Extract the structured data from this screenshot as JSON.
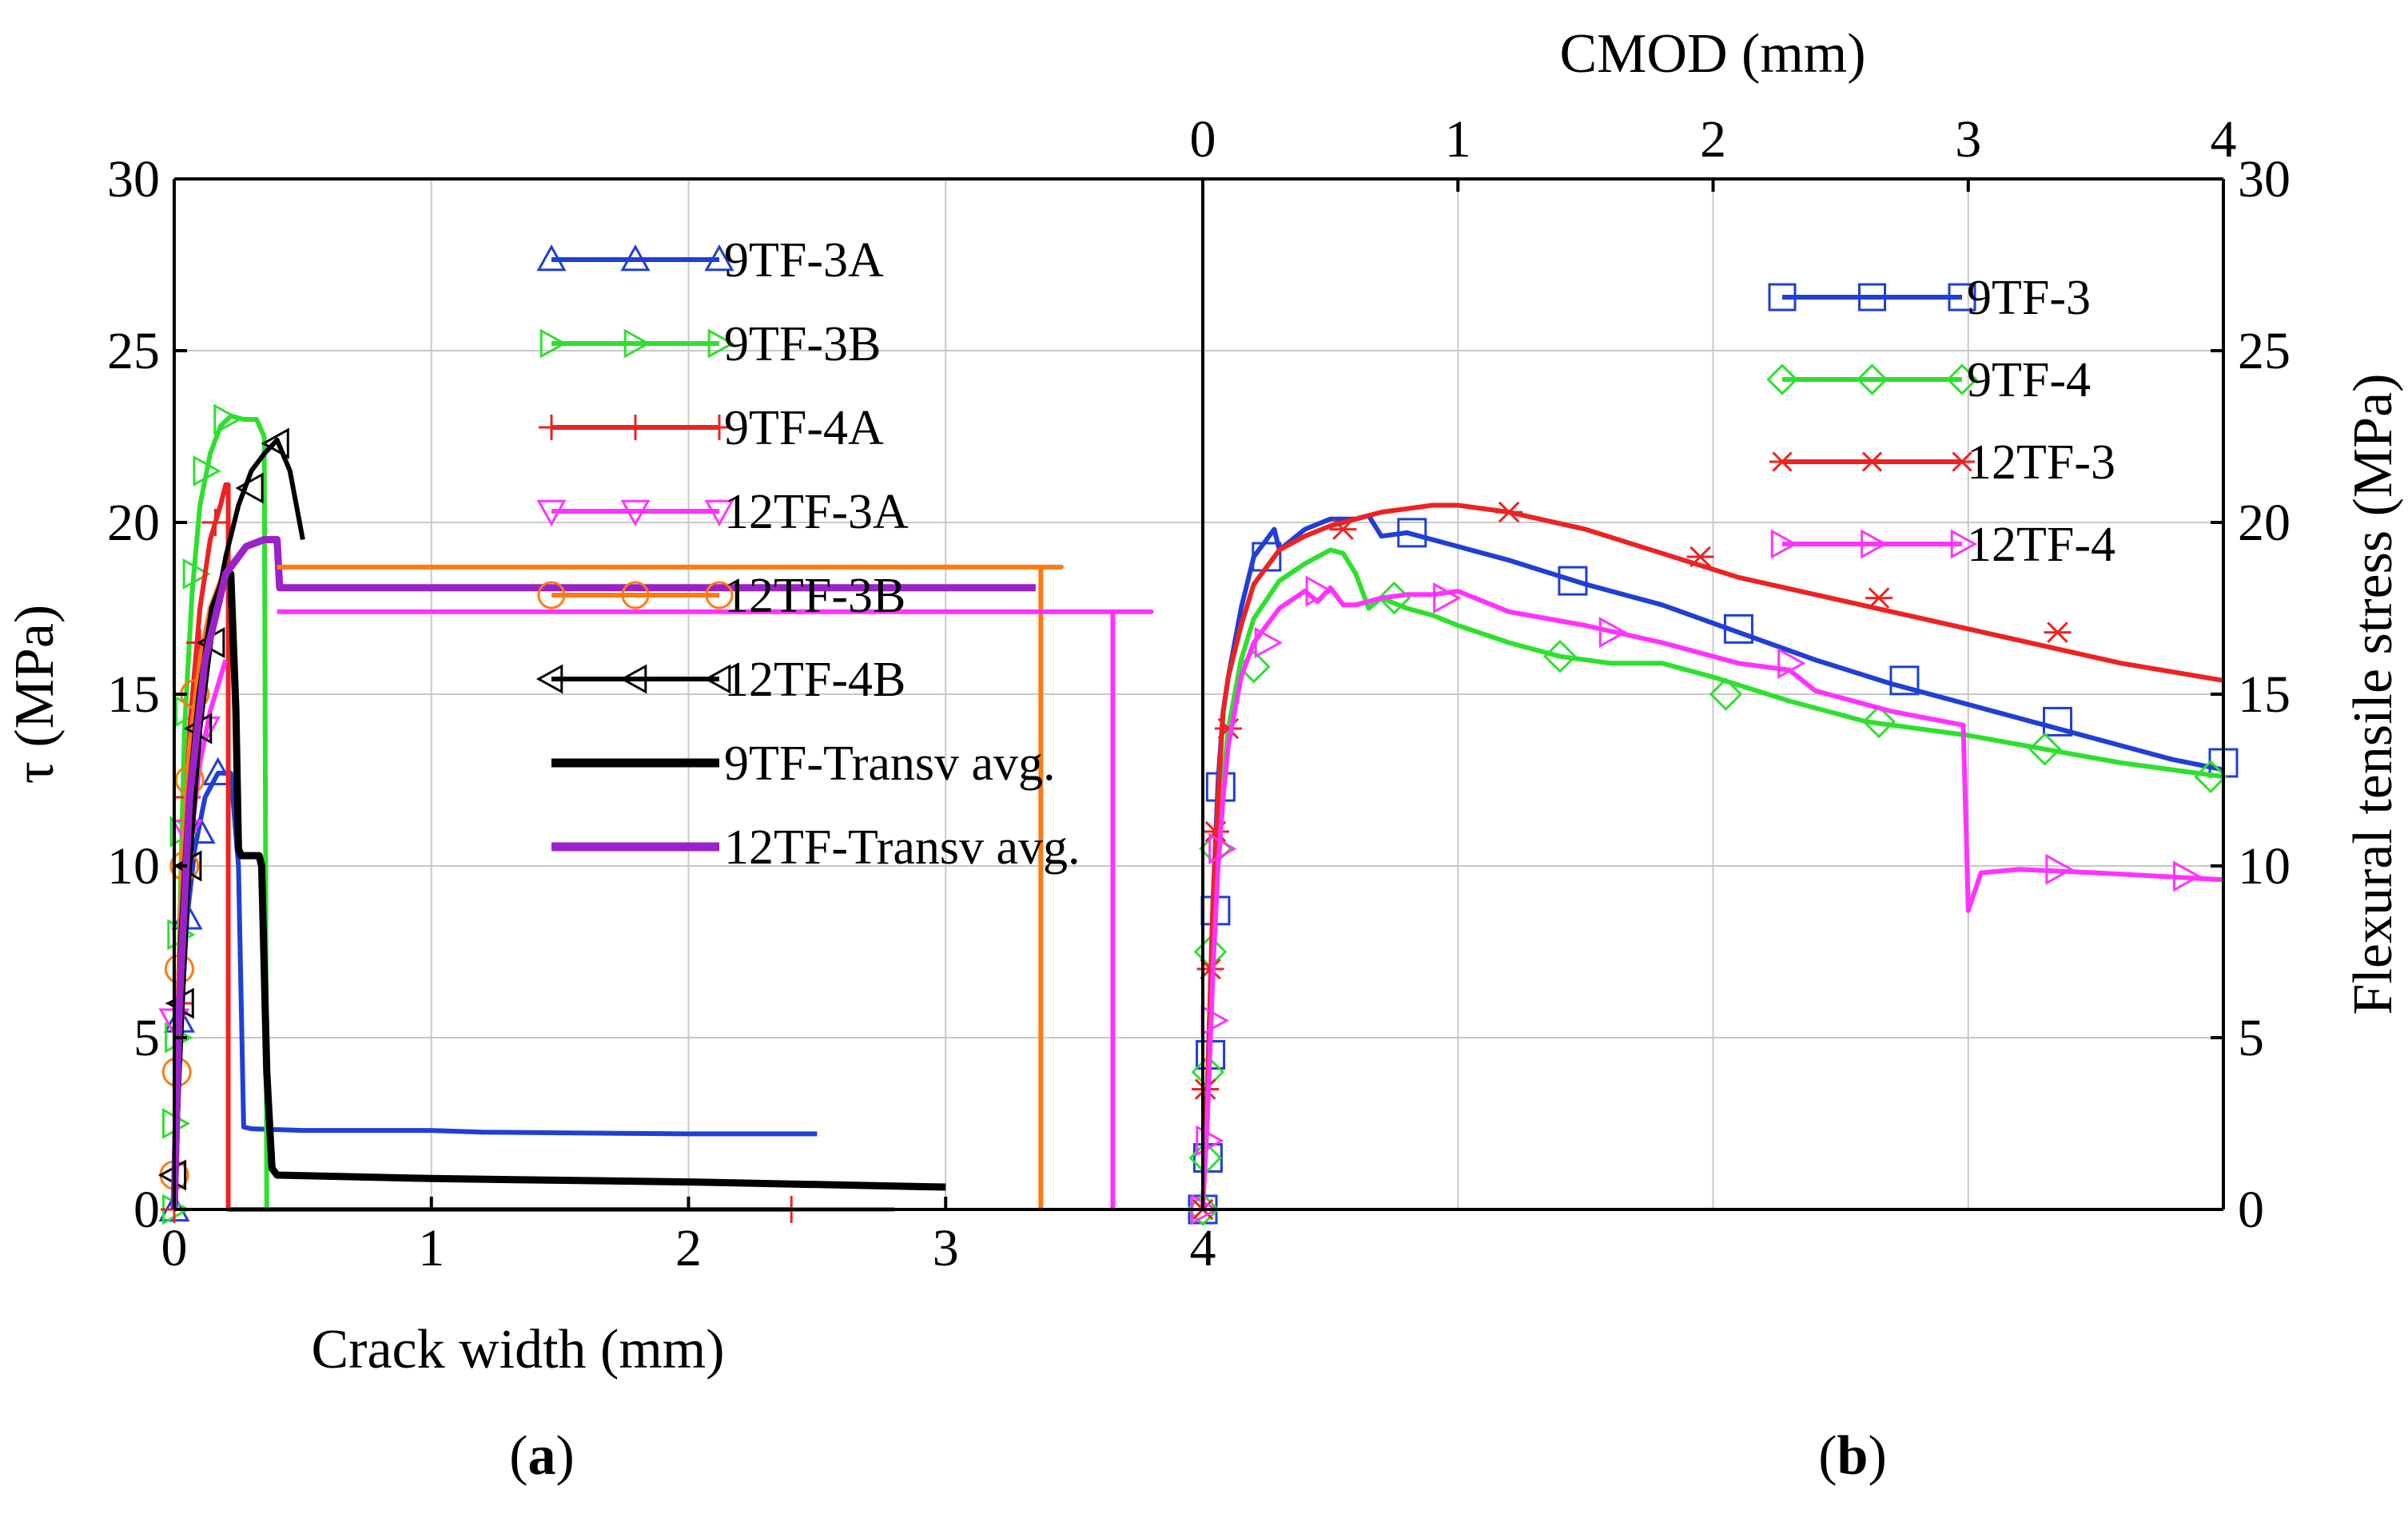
{
  "colors": {
    "blue": "#1f3fd6",
    "green": "#2ee02e",
    "red": "#ee2222",
    "magenta": "#ff33ff",
    "black": "#000000",
    "purple": "#9a22c8",
    "orange": "#ff7a10"
  },
  "chart_data": [
    {
      "type": "line",
      "panel_label_pre": "(",
      "panel_label": "a",
      "panel_label_post": ")",
      "xlabel": "Crack width (mm)",
      "ylabel": "τ (MPa)",
      "xlim": [
        0,
        4
      ],
      "ylim": [
        0,
        30
      ],
      "x_ticks": [
        "0",
        "1",
        "2",
        "3",
        "4"
      ],
      "y_ticks": [
        "0",
        "5",
        "10",
        "15",
        "20",
        "25",
        "30"
      ],
      "grid": true,
      "legend_position": "top-center",
      "series": [
        {
          "name": "9TF-3A",
          "color": "blue",
          "marker": "triangle-up",
          "x": [
            0,
            0.01,
            0.03,
            0.05,
            0.08,
            0.12,
            0.17,
            0.22,
            0.25,
            0.27,
            0.3,
            0.5,
            1.0,
            1.2,
            2.0,
            2.5
          ],
          "y": [
            0,
            3,
            6,
            8.5,
            10.5,
            12,
            12.7,
            12.7,
            10,
            2.4,
            2.35,
            2.3,
            2.3,
            2.25,
            2.2,
            2.2
          ],
          "mx": [
            0,
            0.02,
            0.05,
            0.1,
            0.17
          ],
          "my": [
            0,
            5.5,
            8.5,
            11,
            12.7
          ]
        },
        {
          "name": "9TF-3B",
          "color": "green",
          "marker": "triangle-right",
          "x": [
            0,
            0.01,
            0.02,
            0.04,
            0.07,
            0.1,
            0.14,
            0.18,
            0.22,
            0.27,
            0.32,
            0.35,
            0.36,
            0.4,
            1.0,
            2.0,
            2.8
          ],
          "y": [
            0,
            3,
            8,
            14,
            18,
            20.5,
            22,
            22.8,
            23.1,
            23,
            23,
            22.5,
            0,
            0,
            0,
            0,
            0
          ],
          "mx": [
            0,
            0,
            0.01,
            0.02,
            0.03,
            0.05,
            0.08,
            0.12,
            0.2
          ],
          "my": [
            0,
            2.5,
            5,
            8,
            11,
            14.5,
            18.5,
            21.5,
            23
          ]
        },
        {
          "name": "9TF-4A",
          "color": "red",
          "marker": "plus",
          "x": [
            0,
            0.01,
            0.03,
            0.06,
            0.1,
            0.14,
            0.18,
            0.2,
            0.21,
            0.21,
            0.25,
            1.0,
            2.0,
            2.4
          ],
          "y": [
            0,
            4,
            9,
            14,
            17.5,
            19.5,
            20.5,
            21.1,
            21.1,
            0,
            0,
            0,
            0,
            0
          ],
          "mx": [
            0,
            0.02,
            0.05,
            0.1,
            0.16,
            2.4
          ],
          "my": [
            0,
            6,
            12,
            16.5,
            20,
            0
          ]
        },
        {
          "name": "12TF-3A",
          "color": "magenta",
          "marker": "triangle-down",
          "x": [
            0,
            0.01,
            0.03,
            0.06,
            0.1,
            0.14,
            0.18,
            0.2
          ],
          "y": [
            0,
            3,
            7,
            10.5,
            13,
            14.5,
            15.5,
            16
          ],
          "mx": [
            0,
            0.05,
            0.12
          ],
          "my": [
            5.5,
            11,
            14
          ]
        },
        {
          "name": "12TF-3B",
          "color": "orange",
          "marker": "circle",
          "x": [
            0,
            0.01,
            0.03,
            0.06,
            0.1,
            0.14,
            0.18,
            0.2
          ],
          "y": [
            0,
            5,
            10,
            13.5,
            16,
            17.5,
            18.3,
            18.6
          ],
          "mx": [
            0,
            0.01,
            0.02,
            0.04,
            0.06,
            0.08
          ],
          "my": [
            1,
            4,
            7,
            10,
            12.5,
            15
          ]
        },
        {
          "name": "12TF-4B",
          "color": "black",
          "marker": "triangle-left",
          "x": [
            0,
            0.02,
            0.05,
            0.1,
            0.15,
            0.2,
            0.25,
            0.3,
            0.35,
            0.4,
            0.45,
            0.5
          ],
          "y": [
            0,
            4,
            9,
            14,
            17,
            19,
            20.5,
            21.5,
            22,
            22.4,
            21.5,
            19.5
          ],
          "mx": [
            0,
            0.03,
            0.06,
            0.1,
            0.15,
            0.3,
            0.4
          ],
          "my": [
            1,
            6,
            10,
            14,
            16.5,
            21,
            22.3
          ]
        },
        {
          "name": "9TF-Transv avg.",
          "color": "black",
          "marker": "none",
          "x": [
            0,
            0.01,
            0.03,
            0.06,
            0.1,
            0.15,
            0.2,
            0.22,
            0.24,
            0.25,
            0.26,
            0.33,
            0.34,
            0.36,
            0.38,
            0.4,
            1.0,
            2.0,
            3.0
          ],
          "y": [
            0,
            3,
            8,
            12,
            15,
            17.5,
            18.5,
            18.5,
            14.5,
            10.5,
            10.3,
            10.3,
            10,
            4,
            1.2,
            1.0,
            0.9,
            0.8,
            0.65
          ]
        },
        {
          "name": "12TF-Transv avg.",
          "color": "purple",
          "marker": "none",
          "x": [
            0,
            0.02,
            0.06,
            0.12,
            0.2,
            0.28,
            0.35,
            0.4,
            0.41,
            0.6,
            1.5,
            3.0,
            3.35
          ],
          "y": [
            0,
            6,
            12,
            16,
            18.5,
            19.3,
            19.5,
            19.5,
            18.1,
            18.1,
            18.1,
            18.1,
            18.1
          ]
        },
        {
          "name": "",
          "color": "orange",
          "marker": "none",
          "x": [
            0.4,
            3.45,
            3.45,
            3.37,
            3.37
          ],
          "y": [
            18.7,
            18.7,
            18.7,
            18.7,
            0
          ]
        },
        {
          "name": "",
          "color": "magenta",
          "marker": "none",
          "x": [
            0.4,
            3.8,
            3.8,
            3.65,
            3.65
          ],
          "y": [
            17.4,
            17.4,
            17.4,
            17.4,
            0
          ]
        }
      ]
    },
    {
      "type": "line",
      "panel_label_pre": "(",
      "panel_label": "b",
      "panel_label_post": ")",
      "xlabel": "CMOD (mm)",
      "ylabel": "Flexural tensile stress (MPa)",
      "xlim": [
        0,
        4
      ],
      "ylim": [
        0,
        30
      ],
      "x_ticks": [
        "0",
        "1",
        "2",
        "3",
        "4"
      ],
      "y_ticks": [
        "0",
        "5",
        "10",
        "15",
        "20",
        "25",
        "30"
      ],
      "grid": true,
      "legend_position": "top-right",
      "series": [
        {
          "name": "9TF-3",
          "color": "blue",
          "marker": "square",
          "x": [
            0,
            0.02,
            0.04,
            0.06,
            0.08,
            0.1,
            0.15,
            0.2,
            0.28,
            0.3,
            0.4,
            0.5,
            0.6,
            0.65,
            0.7,
            0.8,
            1.0,
            1.2,
            1.5,
            1.8,
            2.1,
            2.4,
            2.7,
            3.0,
            3.3,
            3.6,
            3.8,
            4.0
          ],
          "y": [
            0,
            4,
            9,
            12.5,
            14.5,
            15.5,
            17.5,
            19,
            19.8,
            19.2,
            19.8,
            20.1,
            20.1,
            20.2,
            19.6,
            19.7,
            19.3,
            18.9,
            18.2,
            17.6,
            16.8,
            16.0,
            15.3,
            14.7,
            14.1,
            13.5,
            13.1,
            12.8
          ],
          "mx": [
            0,
            0.02,
            0.03,
            0.05,
            0.07,
            0.25,
            0.82,
            1.45,
            2.1,
            2.75,
            3.35,
            4.0
          ],
          "my": [
            0,
            1.5,
            4.5,
            8.7,
            12.3,
            19,
            19.7,
            18.3,
            16.9,
            15.4,
            14.2,
            13
          ]
        },
        {
          "name": "9TF-4",
          "color": "green",
          "marker": "diamond",
          "x": [
            0,
            0.02,
            0.04,
            0.06,
            0.08,
            0.1,
            0.15,
            0.2,
            0.3,
            0.4,
            0.5,
            0.55,
            0.6,
            0.65,
            0.7,
            0.8,
            0.9,
            1.0,
            1.2,
            1.4,
            1.6,
            1.8,
            2.0,
            2.3,
            2.6,
            3.0,
            3.3,
            3.6,
            3.8,
            4.0
          ],
          "y": [
            0,
            3.5,
            7.5,
            10.5,
            12.5,
            14,
            16,
            17.2,
            18.3,
            18.8,
            19.2,
            19.1,
            18.5,
            17.5,
            17.8,
            17.5,
            17.3,
            17.0,
            16.5,
            16.1,
            15.9,
            15.9,
            15.5,
            14.8,
            14.2,
            13.8,
            13.4,
            13.0,
            12.8,
            12.6
          ],
          "mx": [
            0,
            0.01,
            0.02,
            0.03,
            0.05,
            0.2,
            0.75,
            1.4,
            2.05,
            2.65,
            3.3,
            3.95
          ],
          "my": [
            0,
            1.5,
            4,
            7.5,
            10.5,
            15.8,
            17.8,
            16.1,
            15.0,
            14.2,
            13.4,
            12.6
          ]
        },
        {
          "name": "12TF-3",
          "color": "red",
          "marker": "asterisk",
          "x": [
            0,
            0.02,
            0.04,
            0.06,
            0.08,
            0.1,
            0.15,
            0.2,
            0.3,
            0.4,
            0.5,
            0.6,
            0.7,
            0.8,
            0.9,
            1.0,
            1.2,
            1.5,
            1.8,
            2.1,
            2.4,
            2.7,
            3.0,
            3.3,
            3.6,
            4.0
          ],
          "y": [
            0,
            4,
            9,
            12,
            14.5,
            15.5,
            17,
            18.2,
            19.2,
            19.6,
            19.9,
            20.1,
            20.3,
            20.4,
            20.5,
            20.5,
            20.3,
            19.8,
            19.1,
            18.4,
            17.9,
            17.4,
            16.9,
            16.4,
            15.9,
            15.4
          ],
          "mx": [
            0,
            0.01,
            0.03,
            0.05,
            0.1,
            0.55,
            1.2,
            1.95,
            2.65,
            3.35
          ],
          "my": [
            0,
            3.5,
            7,
            11,
            14,
            19.8,
            20.3,
            19.0,
            17.8,
            16.8
          ]
        },
        {
          "name": "12TF-4",
          "color": "magenta",
          "marker": "triangle-right",
          "x": [
            0,
            0.02,
            0.04,
            0.06,
            0.08,
            0.1,
            0.15,
            0.2,
            0.3,
            0.4,
            0.45,
            0.5,
            0.55,
            0.6,
            0.7,
            0.8,
            0.9,
            1.0,
            1.2,
            1.5,
            1.8,
            2.1,
            2.3,
            2.4,
            2.7,
            2.98,
            2.99,
            3.0,
            3.05,
            3.2,
            3.5,
            4.0
          ],
          "y": [
            0,
            3,
            7,
            10,
            12,
            13.5,
            15.5,
            16.5,
            17.5,
            18,
            17.7,
            18.1,
            17.6,
            17.6,
            17.8,
            17.9,
            17.9,
            18.0,
            17.4,
            17.0,
            16.5,
            15.9,
            15.7,
            15.1,
            14.5,
            14.1,
            11.5,
            8.7,
            9.8,
            9.9,
            9.8,
            9.6
          ],
          "mx": [
            0,
            0.02,
            0.04,
            0.07,
            0.25,
            0.45,
            0.95,
            1.6,
            2.3,
            3.35,
            3.85
          ],
          "my": [
            0,
            2,
            5.5,
            10.5,
            16.5,
            18.0,
            17.8,
            16.8,
            15.9,
            9.9,
            9.7
          ]
        }
      ]
    }
  ]
}
